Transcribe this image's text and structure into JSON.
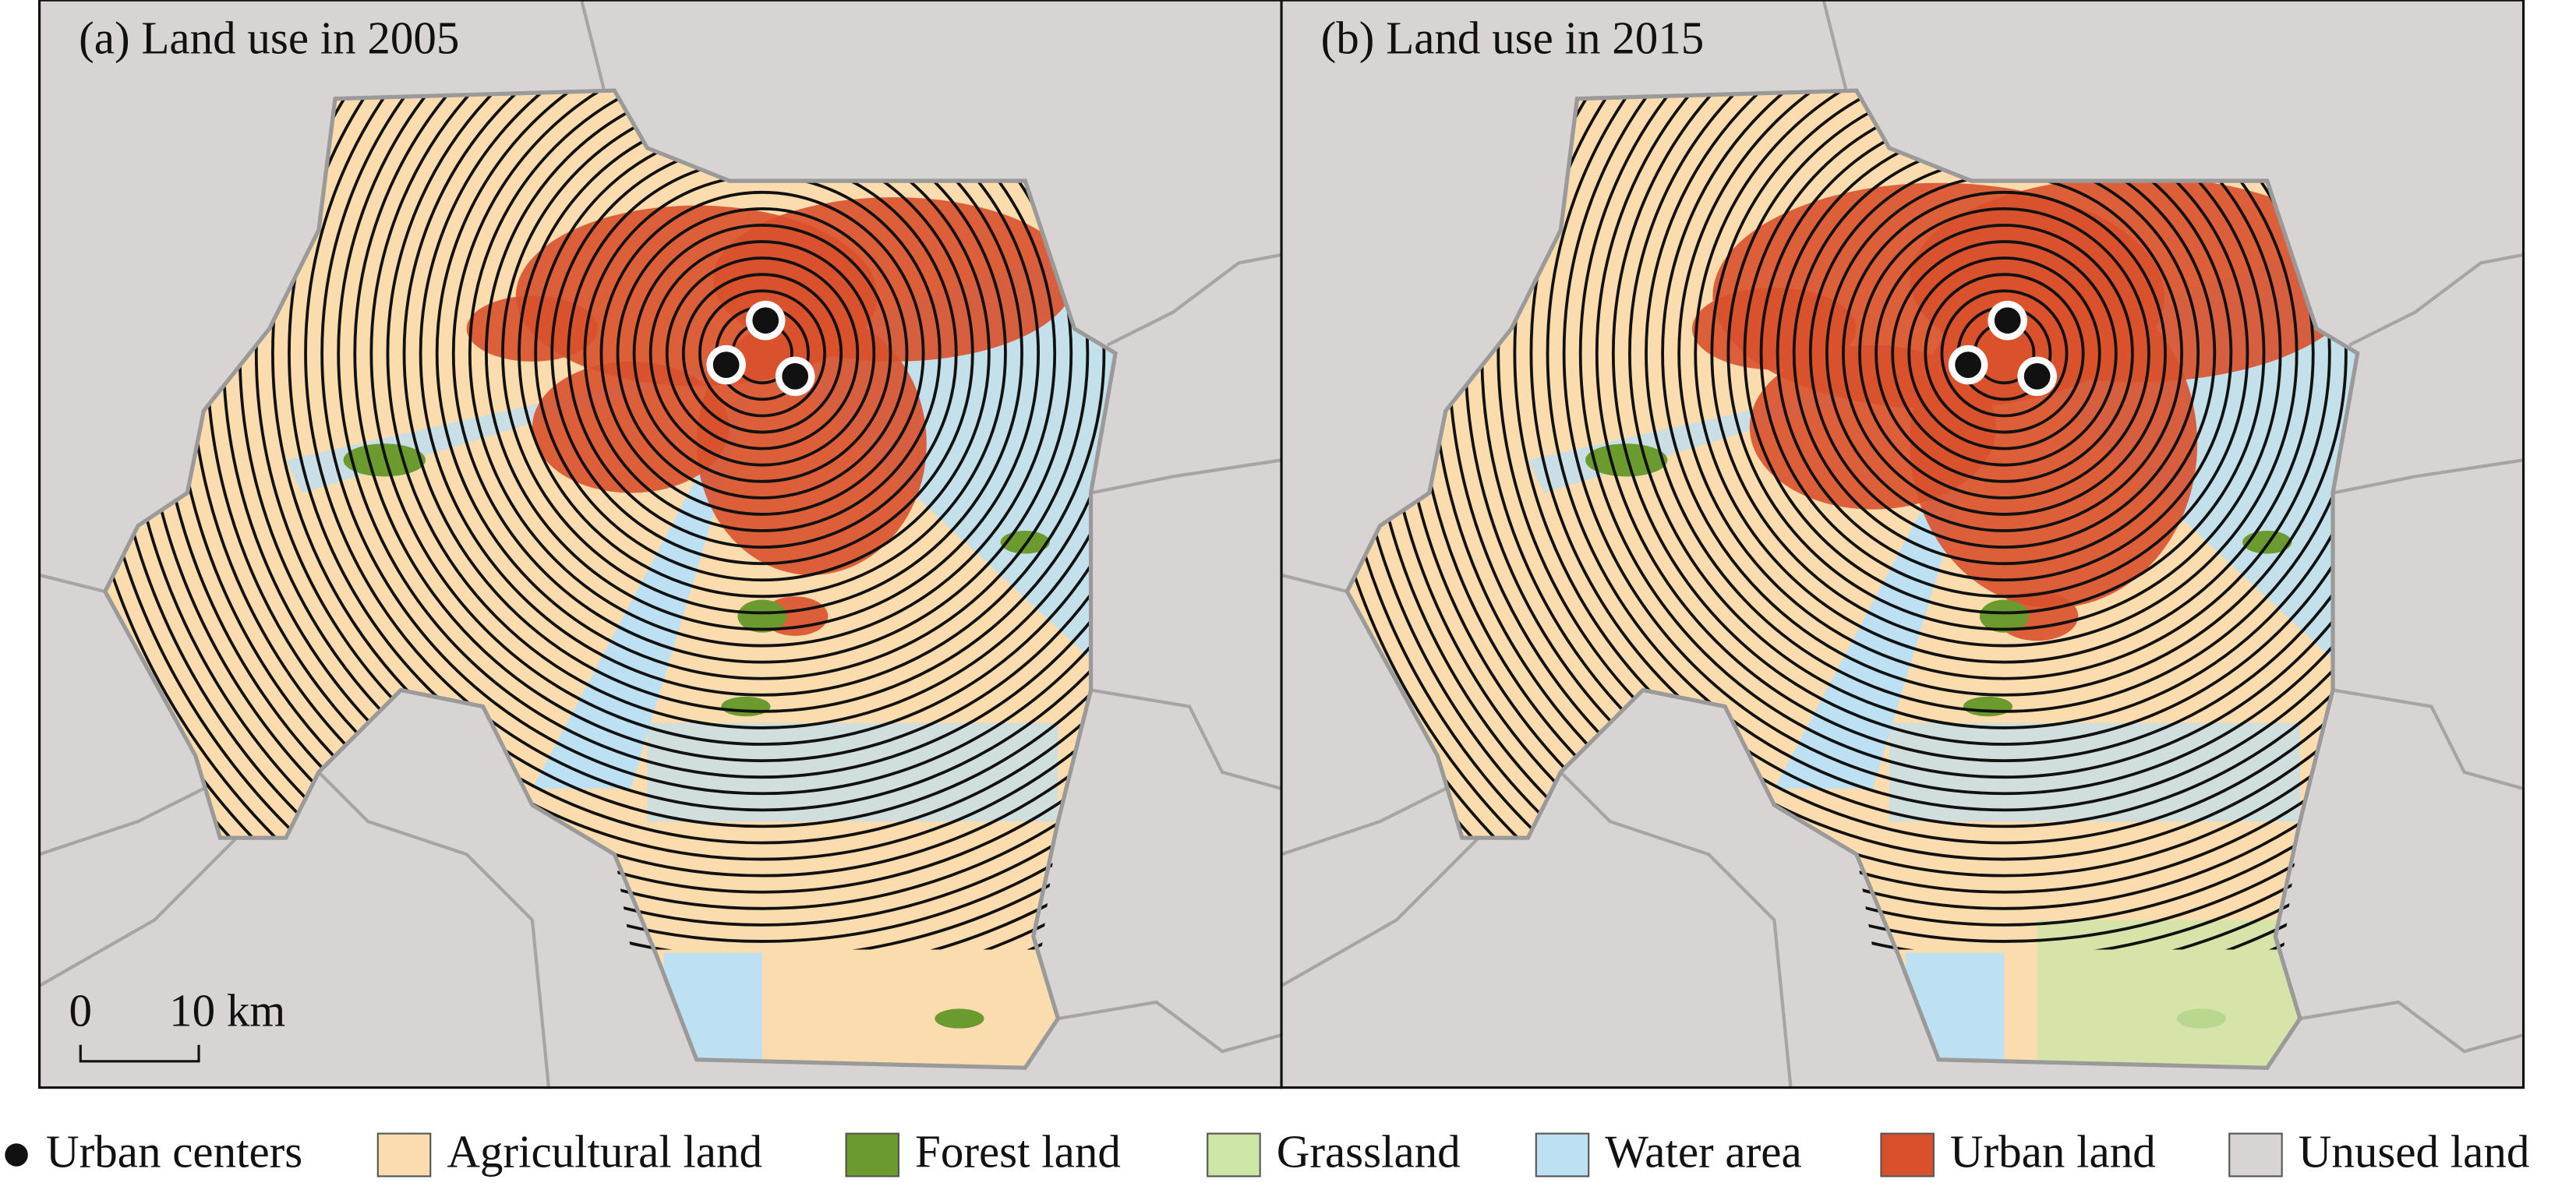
{
  "panels": [
    {
      "title": "(a) Land use in 2005"
    },
    {
      "title": "(b) Land use in 2015"
    }
  ],
  "scale_bar": {
    "labels": [
      "0",
      "10 km"
    ]
  },
  "legend": [
    {
      "label": "Urban centers",
      "color": "#111111",
      "shape": "dot"
    },
    {
      "label": "Agricultural land",
      "color": "#fbdcae",
      "shape": "box"
    },
    {
      "label": "Forest land",
      "color": "#6b9a2e",
      "shape": "box"
    },
    {
      "label": "Grassland",
      "color": "#cde6a8",
      "shape": "box"
    },
    {
      "label": "Water area",
      "color": "#bde0f2",
      "shape": "box"
    },
    {
      "label": "Urban land",
      "color": "#d9512c",
      "shape": "box"
    },
    {
      "label": "Unused land",
      "color": "#d9d4d4",
      "shape": "box"
    }
  ]
}
